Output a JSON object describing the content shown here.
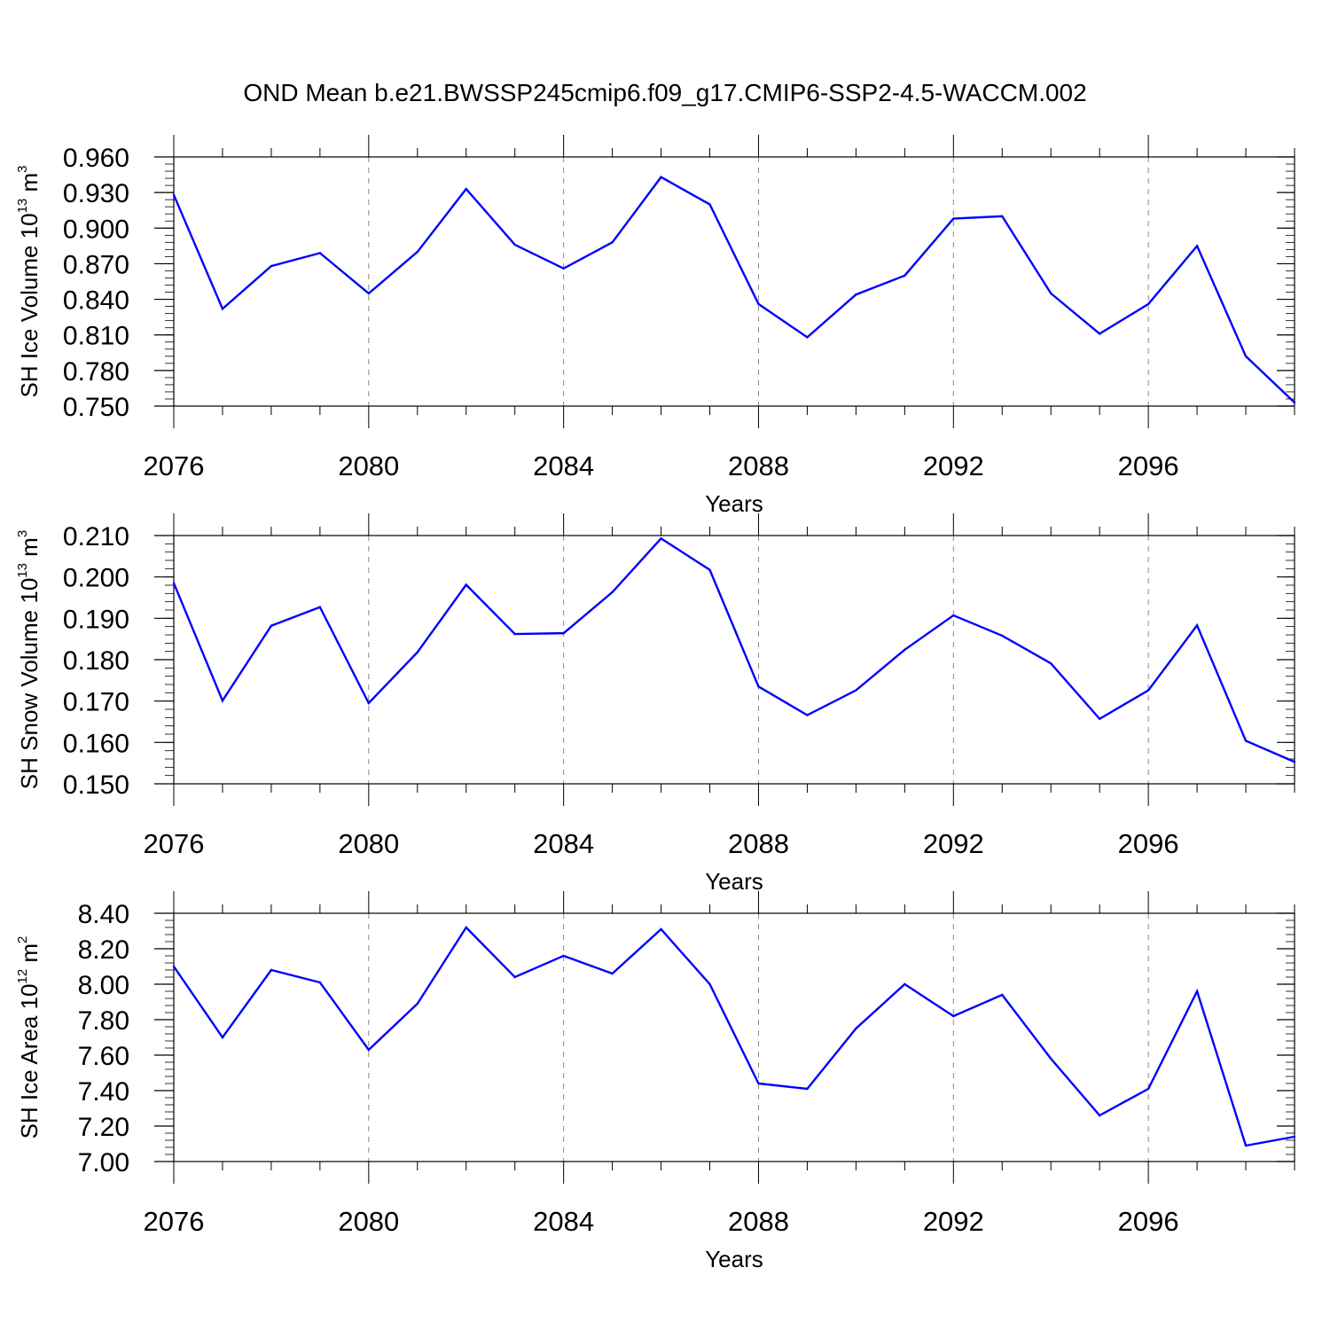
{
  "title": "OND Mean b.e21.BWSSP245cmip6.f09_g17.CMIP6-SSP2-4.5-WACCM.002",
  "colors": {
    "line": "#0000ff",
    "axis": "#000000",
    "grid": "#888888"
  },
  "chart_data": [
    {
      "type": "line",
      "ylabel": {
        "main": "SH Ice Volume 10",
        "exp": "13",
        "unit_base": " m",
        "unit_exp": "3"
      },
      "xlabel": "Years",
      "xlim": [
        2076,
        2099
      ],
      "ylim": [
        0.75,
        0.96
      ],
      "x_ticks": [
        2076,
        2080,
        2084,
        2088,
        2092,
        2096
      ],
      "x_tick_labels": [
        "2076",
        "2080",
        "2084",
        "2088",
        "2092",
        "2096"
      ],
      "y_ticks": [
        0.75,
        0.78,
        0.81,
        0.84,
        0.87,
        0.9,
        0.93,
        0.96
      ],
      "y_tick_labels": [
        "0.750",
        "0.780",
        "0.810",
        "0.840",
        "0.870",
        "0.900",
        "0.930",
        "0.960"
      ],
      "y_minor_step": 0.006,
      "x": [
        2076,
        2077,
        2078,
        2079,
        2080,
        2081,
        2082,
        2083,
        2084,
        2085,
        2086,
        2087,
        2088,
        2089,
        2090,
        2091,
        2092,
        2093,
        2094,
        2095,
        2096,
        2097,
        2098,
        2099
      ],
      "values": [
        0.928,
        0.832,
        0.868,
        0.879,
        0.845,
        0.88,
        0.933,
        0.886,
        0.866,
        0.888,
        0.943,
        0.92,
        0.836,
        0.808,
        0.844,
        0.86,
        0.908,
        0.91,
        0.845,
        0.811,
        0.836,
        0.885,
        0.792,
        0.753
      ],
      "grid": "vertical dashed at major x ticks"
    },
    {
      "type": "line",
      "ylabel": {
        "main": "SH Snow Volume 10",
        "exp": "13",
        "unit_base": " m",
        "unit_exp": "3"
      },
      "xlabel": "Years",
      "xlim": [
        2076,
        2099
      ],
      "ylim": [
        0.15,
        0.21
      ],
      "x_ticks": [
        2076,
        2080,
        2084,
        2088,
        2092,
        2096
      ],
      "x_tick_labels": [
        "2076",
        "2080",
        "2084",
        "2088",
        "2092",
        "2096"
      ],
      "y_ticks": [
        0.15,
        0.16,
        0.17,
        0.18,
        0.19,
        0.2,
        0.21
      ],
      "y_tick_labels": [
        "0.150",
        "0.160",
        "0.170",
        "0.180",
        "0.190",
        "0.200",
        "0.210"
      ],
      "y_minor_step": 0.002,
      "x": [
        2076,
        2077,
        2078,
        2079,
        2080,
        2081,
        2082,
        2083,
        2084,
        2085,
        2086,
        2087,
        2088,
        2089,
        2090,
        2091,
        2092,
        2093,
        2094,
        2095,
        2096,
        2097,
        2098,
        2099
      ],
      "values": [
        0.1985,
        0.1701,
        0.1882,
        0.1927,
        0.1695,
        0.1818,
        0.1981,
        0.1862,
        0.1864,
        0.1963,
        0.2093,
        0.2017,
        0.1735,
        0.1666,
        0.1726,
        0.1824,
        0.1907,
        0.1858,
        0.1791,
        0.1657,
        0.1726,
        0.1883,
        0.1604,
        0.1553
      ],
      "grid": "vertical dashed at major x ticks"
    },
    {
      "type": "line",
      "ylabel": {
        "main": "SH Ice Area 10",
        "exp": "12",
        "unit_base": " m",
        "unit_exp": "2"
      },
      "xlabel": "Years",
      "xlim": [
        2076,
        2099
      ],
      "ylim": [
        7.0,
        8.4
      ],
      "x_ticks": [
        2076,
        2080,
        2084,
        2088,
        2092,
        2096
      ],
      "x_tick_labels": [
        "2076",
        "2080",
        "2084",
        "2088",
        "2092",
        "2096"
      ],
      "y_ticks": [
        7.0,
        7.2,
        7.4,
        7.6,
        7.8,
        8.0,
        8.2,
        8.4
      ],
      "y_tick_labels": [
        "7.00",
        "7.20",
        "7.40",
        "7.60",
        "7.80",
        "8.00",
        "8.20",
        "8.40"
      ],
      "y_minor_step": 0.04,
      "x": [
        2076,
        2077,
        2078,
        2079,
        2080,
        2081,
        2082,
        2083,
        2084,
        2085,
        2086,
        2087,
        2088,
        2089,
        2090,
        2091,
        2092,
        2093,
        2094,
        2095,
        2096,
        2097,
        2098,
        2099
      ],
      "values": [
        8.1,
        7.7,
        8.08,
        8.01,
        7.63,
        7.89,
        8.32,
        8.04,
        8.16,
        8.06,
        8.31,
        8.0,
        7.44,
        7.41,
        7.75,
        8.0,
        7.82,
        7.94,
        7.58,
        7.26,
        7.41,
        7.96,
        7.09,
        7.14
      ],
      "grid": "vertical dashed at major x ticks"
    }
  ]
}
